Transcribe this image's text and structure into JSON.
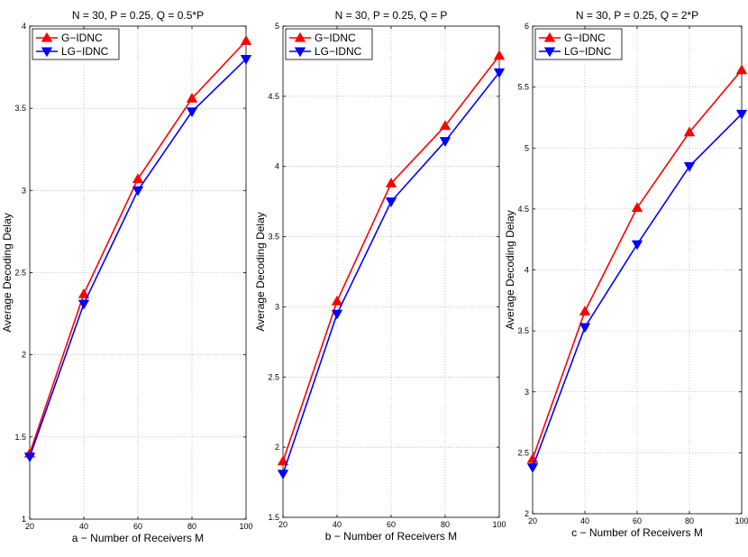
{
  "chart_data": [
    {
      "type": "line",
      "title": "N = 30, P = 0.25, Q = 0.5*P",
      "xlabel": "a − Number of Receivers M",
      "ylabel": "",
      "x": [
        20,
        40,
        60,
        80,
        100
      ],
      "xlim": [
        20,
        100
      ],
      "ylim": [
        1,
        4
      ],
      "xticks": [
        "20",
        "40",
        "60",
        "80",
        "100"
      ],
      "yticks": [
        "1",
        "1.5",
        "2",
        "2.5",
        "3",
        "3.5",
        "4"
      ],
      "grid": true,
      "legend": "top-left",
      "series": [
        {
          "name": "G−IDNC",
          "color": "#ff0000",
          "marker": "triangle-up",
          "values": [
            1.4,
            2.37,
            3.07,
            3.56,
            3.91
          ]
        },
        {
          "name": "LG−IDNC",
          "color": "#0000ff",
          "marker": "triangle-down",
          "values": [
            1.38,
            2.31,
            3.0,
            3.48,
            3.8
          ]
        }
      ]
    },
    {
      "type": "line",
      "title": "N = 30, P = 0.25, Q = P",
      "xlabel": "b − Number of Receivers M",
      "ylabel": "Average Decoding Delay",
      "x": [
        20,
        40,
        60,
        80,
        100
      ],
      "xlim": [
        20,
        100
      ],
      "ylim": [
        1.5,
        5
      ],
      "xticks": [
        "20",
        "40",
        "60",
        "80",
        "100"
      ],
      "yticks": [
        "1.5",
        "2",
        "2.5",
        "3",
        "3.5",
        "4",
        "4.5",
        "5"
      ],
      "grid": true,
      "legend": "top-left",
      "series": [
        {
          "name": "G−IDNC",
          "color": "#ff0000",
          "marker": "triangle-up",
          "values": [
            1.9,
            3.04,
            3.88,
            4.29,
            4.79
          ]
        },
        {
          "name": "LG−IDNC",
          "color": "#0000ff",
          "marker": "triangle-down",
          "values": [
            1.81,
            2.95,
            3.75,
            4.18,
            4.67
          ]
        }
      ]
    },
    {
      "type": "line",
      "title": "N = 30, P = 0.25, Q = 2*P",
      "xlabel": "c − Number of Receivers M",
      "ylabel": "Average Decoding Delay",
      "x": [
        20,
        40,
        60,
        80,
        100
      ],
      "xlim": [
        20,
        100
      ],
      "ylim": [
        2,
        6
      ],
      "xticks": [
        "20",
        "40",
        "60",
        "80",
        "100"
      ],
      "yticks": [
        "2",
        "2.5",
        "3",
        "3.5",
        "4",
        "4.5",
        "5",
        "5.5",
        "6"
      ],
      "grid": true,
      "legend": "top-left",
      "series": [
        {
          "name": "G−IDNC",
          "color": "#ff0000",
          "marker": "triangle-up",
          "values": [
            2.45,
            3.66,
            4.51,
            5.13,
            5.64
          ]
        },
        {
          "name": "LG−IDNC",
          "color": "#0000ff",
          "marker": "triangle-down",
          "values": [
            2.38,
            3.53,
            4.21,
            4.85,
            5.28
          ]
        }
      ]
    }
  ],
  "figure": {
    "ylabel_left": "Average Decoding Delay"
  }
}
